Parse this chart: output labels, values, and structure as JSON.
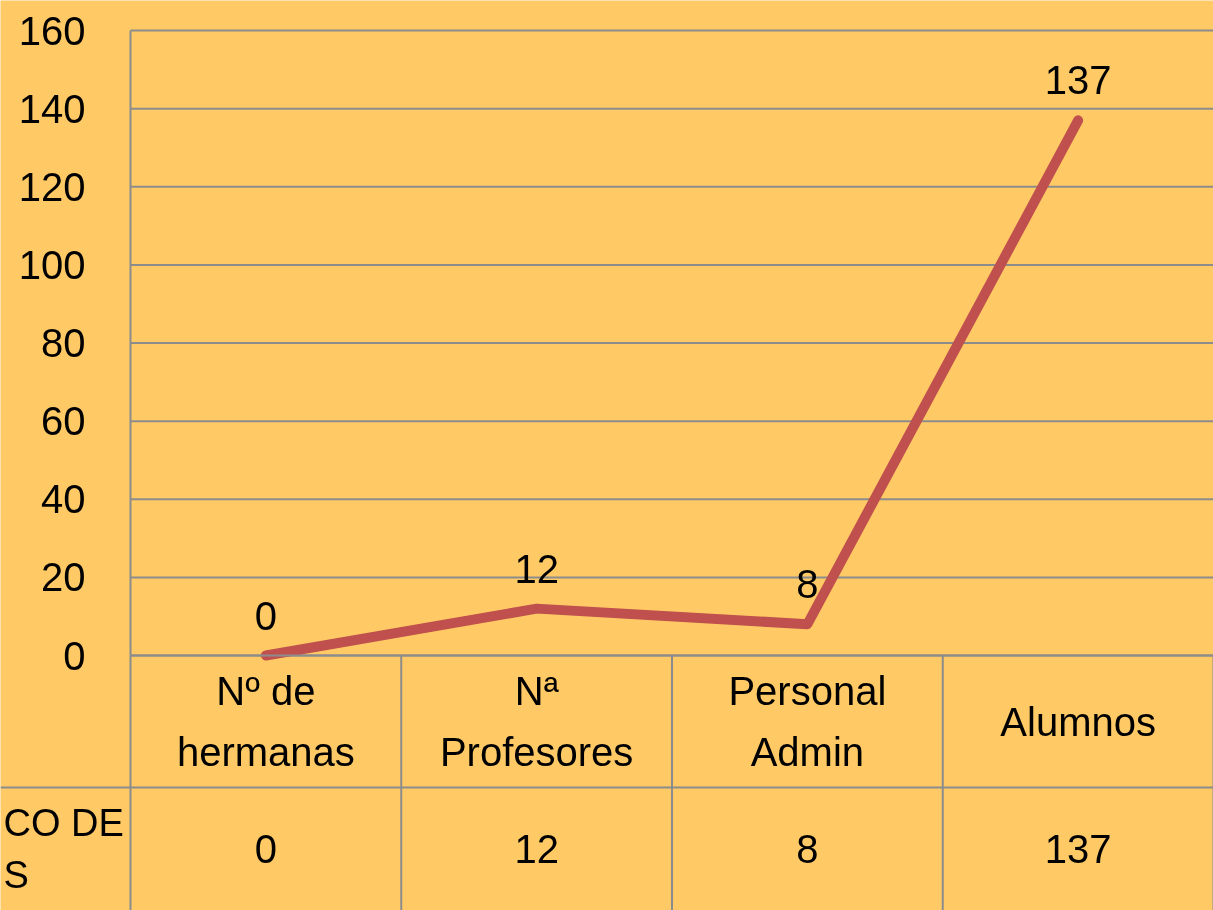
{
  "chart_data": {
    "type": "line",
    "categories": [
      "Nº de hermanas",
      "Nª Profesores",
      "Personal Admin",
      "Alumnos"
    ],
    "series": [
      {
        "name": "CO DE S",
        "color": "#c0504d",
        "values": [
          0,
          12,
          8,
          137
        ],
        "value_labels": [
          "0",
          "12",
          "8",
          "137"
        ]
      }
    ],
    "ylim": [
      0,
      160
    ],
    "yticks": [
      0,
      20,
      40,
      60,
      80,
      100,
      120,
      140,
      160
    ],
    "grid": "y",
    "data_labels": true
  }
}
